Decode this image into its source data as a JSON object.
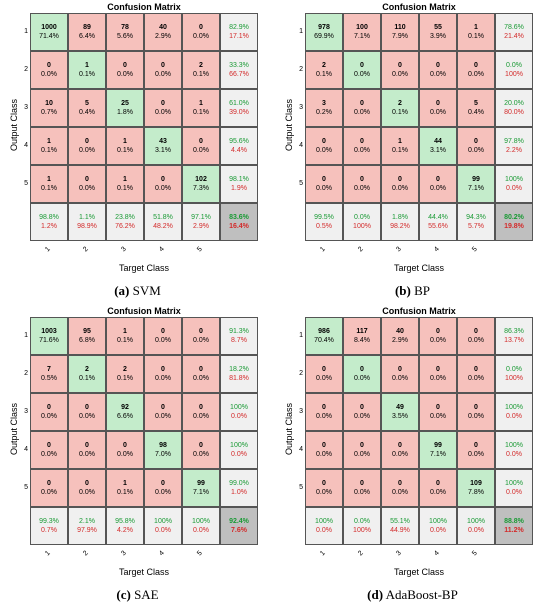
{
  "panels": [
    {
      "title": "Confusion Matrix",
      "xlabel": "Target Class",
      "ylabel": "Output Class",
      "caption_letter": "(a)",
      "caption_name": "SVM",
      "matrix": [
        [
          {
            "c": "1000",
            "p": "71.4%"
          },
          {
            "c": "89",
            "p": "6.4%"
          },
          {
            "c": "78",
            "p": "5.6%"
          },
          {
            "c": "40",
            "p": "2.9%"
          },
          {
            "c": "0",
            "p": "0.0%"
          }
        ],
        [
          {
            "c": "0",
            "p": "0.0%"
          },
          {
            "c": "1",
            "p": "0.1%"
          },
          {
            "c": "0",
            "p": "0.0%"
          },
          {
            "c": "0",
            "p": "0.0%"
          },
          {
            "c": "2",
            "p": "0.1%"
          }
        ],
        [
          {
            "c": "10",
            "p": "0.7%"
          },
          {
            "c": "5",
            "p": "0.4%"
          },
          {
            "c": "25",
            "p": "1.8%"
          },
          {
            "c": "0",
            "p": "0.0%"
          },
          {
            "c": "1",
            "p": "0.1%"
          }
        ],
        [
          {
            "c": "1",
            "p": "0.1%"
          },
          {
            "c": "0",
            "p": "0.0%"
          },
          {
            "c": "1",
            "p": "0.1%"
          },
          {
            "c": "43",
            "p": "3.1%"
          },
          {
            "c": "0",
            "p": "0.0%"
          }
        ],
        [
          {
            "c": "1",
            "p": "0.1%"
          },
          {
            "c": "0",
            "p": "0.0%"
          },
          {
            "c": "1",
            "p": "0.1%"
          },
          {
            "c": "0",
            "p": "0.0%"
          },
          {
            "c": "102",
            "p": "7.3%"
          }
        ]
      ],
      "row_summary": [
        [
          "82.9%",
          "17.1%"
        ],
        [
          "33.3%",
          "66.7%"
        ],
        [
          "61.0%",
          "39.0%"
        ],
        [
          "95.6%",
          "4.4%"
        ],
        [
          "98.1%",
          "1.9%"
        ]
      ],
      "col_summary": [
        [
          "98.8%",
          "1.2%"
        ],
        [
          "1.1%",
          "98.9%"
        ],
        [
          "23.8%",
          "76.2%"
        ],
        [
          "51.8%",
          "48.2%"
        ],
        [
          "97.1%",
          "2.9%"
        ]
      ],
      "total": [
        "83.6%",
        "16.4%"
      ]
    },
    {
      "title": "Confusion Matrix",
      "xlabel": "Target Class",
      "ylabel": "Output Class",
      "caption_letter": "(b)",
      "caption_name": "BP",
      "matrix": [
        [
          {
            "c": "978",
            "p": "69.9%"
          },
          {
            "c": "100",
            "p": "7.1%"
          },
          {
            "c": "110",
            "p": "7.9%"
          },
          {
            "c": "55",
            "p": "3.9%"
          },
          {
            "c": "1",
            "p": "0.1%"
          }
        ],
        [
          {
            "c": "2",
            "p": "0.1%"
          },
          {
            "c": "0",
            "p": "0.0%"
          },
          {
            "c": "0",
            "p": "0.0%"
          },
          {
            "c": "0",
            "p": "0.0%"
          },
          {
            "c": "0",
            "p": "0.0%"
          }
        ],
        [
          {
            "c": "3",
            "p": "0.2%"
          },
          {
            "c": "0",
            "p": "0.0%"
          },
          {
            "c": "2",
            "p": "0.1%"
          },
          {
            "c": "0",
            "p": "0.0%"
          },
          {
            "c": "5",
            "p": "0.4%"
          }
        ],
        [
          {
            "c": "0",
            "p": "0.0%"
          },
          {
            "c": "0",
            "p": "0.0%"
          },
          {
            "c": "1",
            "p": "0.1%"
          },
          {
            "c": "44",
            "p": "3.1%"
          },
          {
            "c": "0",
            "p": "0.0%"
          }
        ],
        [
          {
            "c": "0",
            "p": "0.0%"
          },
          {
            "c": "0",
            "p": "0.0%"
          },
          {
            "c": "0",
            "p": "0.0%"
          },
          {
            "c": "0",
            "p": "0.0%"
          },
          {
            "c": "99",
            "p": "7.1%"
          }
        ]
      ],
      "row_summary": [
        [
          "78.6%",
          "21.4%"
        ],
        [
          "0.0%",
          "100%"
        ],
        [
          "20.0%",
          "80.0%"
        ],
        [
          "97.8%",
          "2.2%"
        ],
        [
          "100%",
          "0.0%"
        ]
      ],
      "col_summary": [
        [
          "99.5%",
          "0.5%"
        ],
        [
          "0.0%",
          "100%"
        ],
        [
          "1.8%",
          "98.2%"
        ],
        [
          "44.4%",
          "55.6%"
        ],
        [
          "94.3%",
          "5.7%"
        ]
      ],
      "total": [
        "80.2%",
        "19.8%"
      ]
    },
    {
      "title": "Confusion Matrix",
      "xlabel": "Target Class",
      "ylabel": "Output Class",
      "caption_letter": "(c)",
      "caption_name": "SAE",
      "matrix": [
        [
          {
            "c": "1003",
            "p": "71.6%"
          },
          {
            "c": "95",
            "p": "6.8%"
          },
          {
            "c": "1",
            "p": "0.1%"
          },
          {
            "c": "0",
            "p": "0.0%"
          },
          {
            "c": "0",
            "p": "0.0%"
          }
        ],
        [
          {
            "c": "7",
            "p": "0.5%"
          },
          {
            "c": "2",
            "p": "0.1%"
          },
          {
            "c": "2",
            "p": "0.1%"
          },
          {
            "c": "0",
            "p": "0.0%"
          },
          {
            "c": "0",
            "p": "0.0%"
          }
        ],
        [
          {
            "c": "0",
            "p": "0.0%"
          },
          {
            "c": "0",
            "p": "0.0%"
          },
          {
            "c": "92",
            "p": "6.6%"
          },
          {
            "c": "0",
            "p": "0.0%"
          },
          {
            "c": "0",
            "p": "0.0%"
          }
        ],
        [
          {
            "c": "0",
            "p": "0.0%"
          },
          {
            "c": "0",
            "p": "0.0%"
          },
          {
            "c": "0",
            "p": "0.0%"
          },
          {
            "c": "98",
            "p": "7.0%"
          },
          {
            "c": "0",
            "p": "0.0%"
          }
        ],
        [
          {
            "c": "0",
            "p": "0.0%"
          },
          {
            "c": "0",
            "p": "0.0%"
          },
          {
            "c": "1",
            "p": "0.1%"
          },
          {
            "c": "0",
            "p": "0.0%"
          },
          {
            "c": "99",
            "p": "7.1%"
          }
        ]
      ],
      "row_summary": [
        [
          "91.3%",
          "8.7%"
        ],
        [
          "18.2%",
          "81.8%"
        ],
        [
          "100%",
          "0.0%"
        ],
        [
          "100%",
          "0.0%"
        ],
        [
          "99.0%",
          "1.0%"
        ]
      ],
      "col_summary": [
        [
          "99.3%",
          "0.7%"
        ],
        [
          "2.1%",
          "97.9%"
        ],
        [
          "95.8%",
          "4.2%"
        ],
        [
          "100%",
          "0.0%"
        ],
        [
          "100%",
          "0.0%"
        ]
      ],
      "total": [
        "92.4%",
        "7.6%"
      ]
    },
    {
      "title": "Confusion Matrix",
      "xlabel": "Target Class",
      "ylabel": "Output Class",
      "caption_letter": "(d)",
      "caption_name": "AdaBoost-BP",
      "matrix": [
        [
          {
            "c": "986",
            "p": "70.4%"
          },
          {
            "c": "117",
            "p": "8.4%"
          },
          {
            "c": "40",
            "p": "2.9%"
          },
          {
            "c": "0",
            "p": "0.0%"
          },
          {
            "c": "0",
            "p": "0.0%"
          }
        ],
        [
          {
            "c": "0",
            "p": "0.0%"
          },
          {
            "c": "0",
            "p": "0.0%"
          },
          {
            "c": "0",
            "p": "0.0%"
          },
          {
            "c": "0",
            "p": "0.0%"
          },
          {
            "c": "0",
            "p": "0.0%"
          }
        ],
        [
          {
            "c": "0",
            "p": "0.0%"
          },
          {
            "c": "0",
            "p": "0.0%"
          },
          {
            "c": "49",
            "p": "3.5%"
          },
          {
            "c": "0",
            "p": "0.0%"
          },
          {
            "c": "0",
            "p": "0.0%"
          }
        ],
        [
          {
            "c": "0",
            "p": "0.0%"
          },
          {
            "c": "0",
            "p": "0.0%"
          },
          {
            "c": "0",
            "p": "0.0%"
          },
          {
            "c": "99",
            "p": "7.1%"
          },
          {
            "c": "0",
            "p": "0.0%"
          }
        ],
        [
          {
            "c": "0",
            "p": "0.0%"
          },
          {
            "c": "0",
            "p": "0.0%"
          },
          {
            "c": "0",
            "p": "0.0%"
          },
          {
            "c": "0",
            "p": "0.0%"
          },
          {
            "c": "109",
            "p": "7.8%"
          }
        ]
      ],
      "row_summary": [
        [
          "86.3%",
          "13.7%"
        ],
        [
          "0.0%",
          "100%"
        ],
        [
          "100%",
          "0.0%"
        ],
        [
          "100%",
          "0.0%"
        ],
        [
          "100%",
          "0.0%"
        ]
      ],
      "col_summary": [
        [
          "100%",
          "0.0%"
        ],
        [
          "0.0%",
          "100%"
        ],
        [
          "55.1%",
          "44.9%"
        ],
        [
          "100%",
          "0.0%"
        ],
        [
          "100%",
          "0.0%"
        ]
      ],
      "total": [
        "88.8%",
        "11.2%"
      ]
    }
  ],
  "chart_data": [
    {
      "type": "heatmap",
      "title": "Confusion Matrix",
      "xlabel": "Target Class",
      "ylabel": "Output Class",
      "categories": [
        "1",
        "2",
        "3",
        "4",
        "5"
      ],
      "values": [
        [
          1000,
          89,
          78,
          40,
          0
        ],
        [
          0,
          1,
          0,
          0,
          2
        ],
        [
          10,
          5,
          25,
          0,
          1
        ],
        [
          1,
          0,
          1,
          43,
          0
        ],
        [
          1,
          0,
          1,
          0,
          102
        ]
      ],
      "accuracy": "83.6%"
    },
    {
      "type": "heatmap",
      "title": "Confusion Matrix",
      "xlabel": "Target Class",
      "ylabel": "Output Class",
      "categories": [
        "1",
        "2",
        "3",
        "4",
        "5"
      ],
      "values": [
        [
          978,
          100,
          110,
          55,
          1
        ],
        [
          2,
          0,
          0,
          0,
          0
        ],
        [
          3,
          0,
          2,
          0,
          5
        ],
        [
          0,
          0,
          1,
          44,
          0
        ],
        [
          0,
          0,
          0,
          0,
          99
        ]
      ],
      "accuracy": "80.2%"
    },
    {
      "type": "heatmap",
      "title": "Confusion Matrix",
      "xlabel": "Target Class",
      "ylabel": "Output Class",
      "categories": [
        "1",
        "2",
        "3",
        "4",
        "5"
      ],
      "values": [
        [
          1003,
          95,
          1,
          0,
          0
        ],
        [
          7,
          2,
          2,
          0,
          0
        ],
        [
          0,
          0,
          92,
          0,
          0
        ],
        [
          0,
          0,
          0,
          98,
          0
        ],
        [
          0,
          0,
          1,
          0,
          99
        ]
      ],
      "accuracy": "92.4%"
    },
    {
      "type": "heatmap",
      "title": "Confusion Matrix",
      "xlabel": "Target Class",
      "ylabel": "Output Class",
      "categories": [
        "1",
        "2",
        "3",
        "4",
        "5"
      ],
      "values": [
        [
          986,
          117,
          40,
          0,
          0
        ],
        [
          0,
          0,
          0,
          0,
          0
        ],
        [
          0,
          0,
          49,
          0,
          0
        ],
        [
          0,
          0,
          0,
          99,
          0
        ],
        [
          0,
          0,
          0,
          0,
          109
        ]
      ],
      "accuracy": "88.8%"
    }
  ],
  "class_labels": [
    "1",
    "2",
    "3",
    "4",
    "5"
  ],
  "colors": {
    "diag": "#c4eccb",
    "off": "#f6c1bc",
    "summary": "#f0f0f0",
    "total": "#bfbfbf",
    "green_text": "#1a9a35",
    "red_text": "#d32b2b"
  }
}
